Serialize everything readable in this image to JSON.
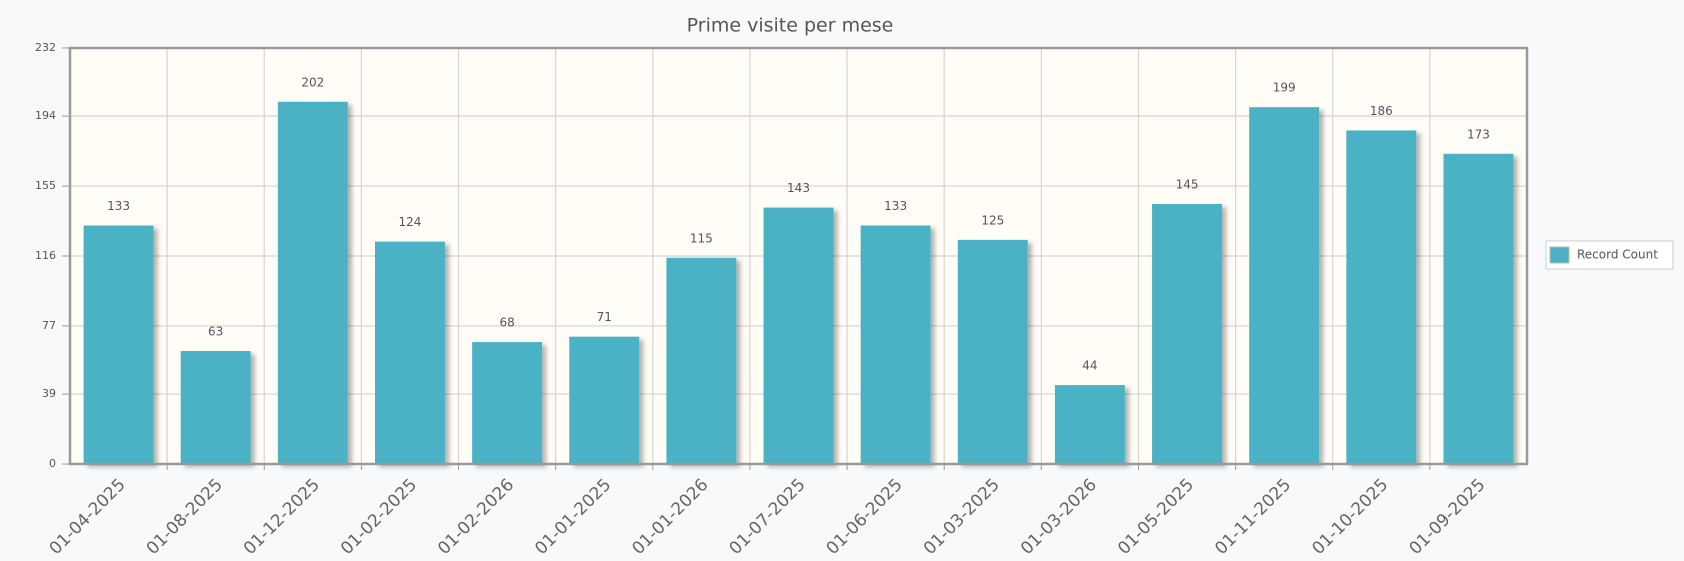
{
  "chart_data": {
    "type": "bar",
    "title": "Prime visite per mese",
    "categories": [
      "01-04-2025",
      "01-08-2025",
      "01-12-2025",
      "01-02-2025",
      "01-02-2026",
      "01-01-2025",
      "01-01-2026",
      "01-07-2025",
      "01-06-2025",
      "01-03-2025",
      "01-03-2026",
      "01-05-2025",
      "01-11-2025",
      "01-10-2025",
      "01-09-2025"
    ],
    "series": [
      {
        "name": "Record Count",
        "color": "#4bb2c5",
        "values": [
          133,
          63,
          202,
          124,
          68,
          71,
          115,
          143,
          133,
          125,
          44,
          145,
          199,
          186,
          173
        ]
      }
    ],
    "ylim": [
      0,
      232
    ],
    "yticks": [
      0,
      39,
      77,
      116,
      155,
      194,
      232
    ],
    "grid": true,
    "legend": "right"
  }
}
